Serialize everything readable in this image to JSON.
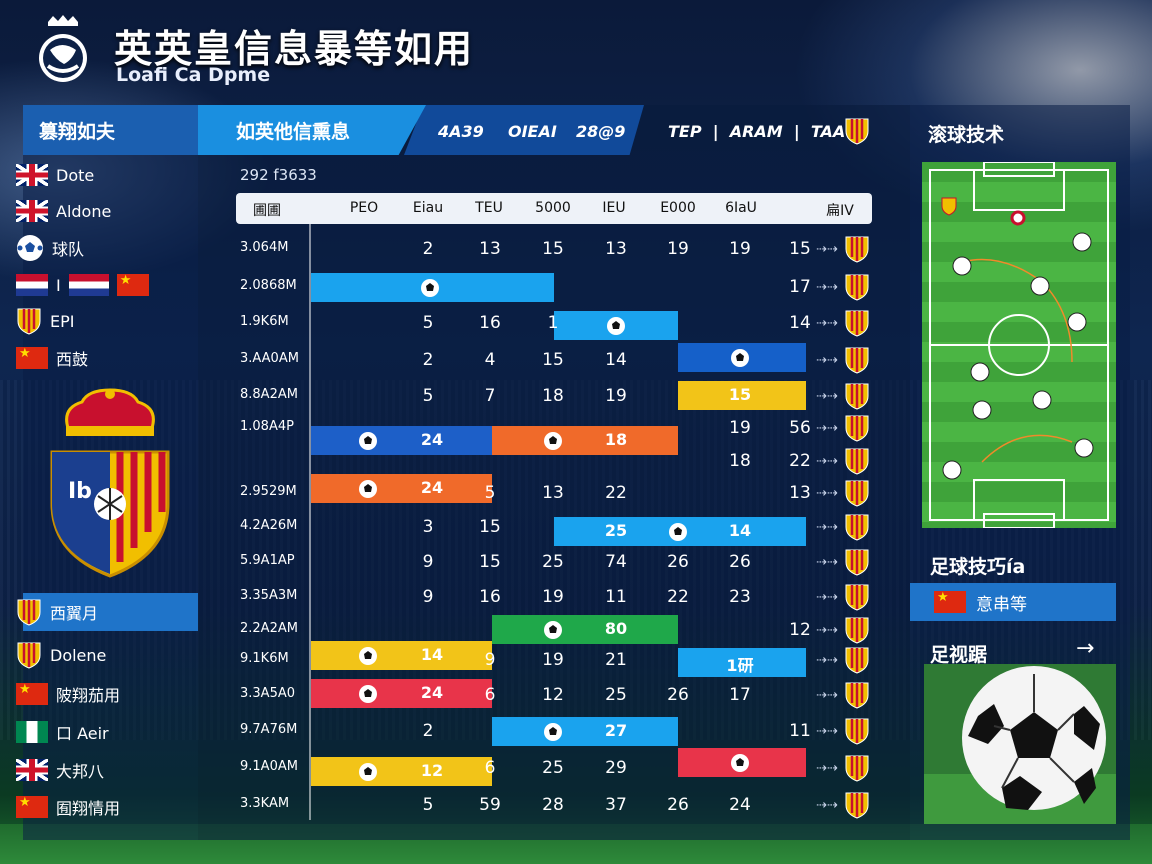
{
  "header": {
    "title": "英英皇信息暴等如用",
    "subtitle": "Loafi Ca Dpme"
  },
  "left_panel": {
    "heading": "篡翔如夫",
    "items": [
      {
        "label": "Dote",
        "icon": "uk-flag-icon"
      },
      {
        "label": "Aldone",
        "icon": "uk-flag-icon"
      },
      {
        "label": "球队",
        "icon": "ball-icon"
      },
      {
        "label": "I",
        "icon": "stripe-flag-icon"
      },
      {
        "label": "EPI",
        "icon": "shield-icon"
      },
      {
        "label": "西鼓",
        "icon": "china-flag-icon"
      }
    ],
    "bottom_items": [
      {
        "label": "西翼月",
        "icon": "shield-icon"
      },
      {
        "label": "Dolene",
        "icon": "shield-icon"
      },
      {
        "label": "陂翔茄用",
        "icon": "china-flag-icon"
      },
      {
        "label": "口 Aeir",
        "icon": "nigeria-flag-icon"
      },
      {
        "label": "大邦八",
        "icon": "uk-flag-icon"
      },
      {
        "label": "囿翔情用",
        "icon": "china-flag-icon"
      }
    ]
  },
  "center_panel": {
    "tab_label": "如英他信熏息",
    "tab_stats": [
      "4A39",
      "OIEAI",
      "28@9"
    ],
    "tab_right": "TEP  |  ARAM  |  TAA",
    "season": "292 f3633",
    "columns": [
      "圃圃",
      "PEO",
      "Eiau",
      "TEU",
      "5000",
      "IEU",
      "E000",
      "6IaU",
      "扁IV"
    ]
  },
  "table": {
    "rows": [
      {
        "date": "3.064M",
        "cells": [
          "2",
          "13",
          "15",
          "13",
          "19",
          "19",
          "15"
        ]
      },
      {
        "date": "2.0868M",
        "cells": [
          "",
          "",
          "",
          "",
          "",
          "",
          "17"
        ]
      },
      {
        "date": "1.9K6M",
        "cells": [
          "5",
          "16",
          "1",
          "",
          "",
          "",
          "14"
        ]
      },
      {
        "date": "3.AA0AM",
        "cells": [
          "2",
          "4",
          "15",
          "14",
          "",
          "",
          ""
        ]
      },
      {
        "date": "8.8A2AM",
        "cells": [
          "5",
          "7",
          "18",
          "19",
          "",
          "",
          ""
        ]
      },
      {
        "date": "1.08A4P",
        "cells": [
          "",
          "",
          "",
          "",
          "",
          "19",
          "56"
        ]
      },
      {
        "date": "",
        "cells": [
          "",
          "",
          "",
          "",
          "",
          "18",
          "22"
        ]
      },
      {
        "date": "2.9529M",
        "cells": [
          "",
          "5",
          "13",
          "22",
          "",
          "",
          "13"
        ]
      },
      {
        "date": "4.2A26M",
        "cells": [
          "3",
          "15",
          "",
          "",
          "",
          "",
          ""
        ]
      },
      {
        "date": "5.9A1AP",
        "cells": [
          "9",
          "15",
          "25",
          "74",
          "26",
          "26",
          ""
        ]
      },
      {
        "date": "3.35A3M",
        "cells": [
          "9",
          "16",
          "19",
          "11",
          "22",
          "23",
          ""
        ]
      },
      {
        "date": "2.2A2AM",
        "cells": [
          "",
          "",
          "",
          "",
          "",
          "",
          "12"
        ]
      },
      {
        "date": "9.1K6M",
        "cells": [
          "",
          "9",
          "19",
          "21",
          "",
          "",
          ""
        ]
      },
      {
        "date": "3.3A5A0",
        "cells": [
          "",
          "6",
          "12",
          "25",
          "26",
          "17",
          ""
        ]
      },
      {
        "date": "9.7A76M",
        "cells": [
          "2",
          "",
          "",
          "",
          "",
          "",
          "11"
        ]
      },
      {
        "date": "9.1A0AM",
        "cells": [
          "",
          "6",
          "25",
          "29",
          "",
          "",
          ""
        ]
      },
      {
        "date": "3.3KAM",
        "cells": [
          "5",
          "59",
          "28",
          "37",
          "26",
          "24",
          ""
        ]
      }
    ],
    "bars": [
      {
        "color": "#1aa3ee",
        "value": ""
      },
      {
        "color": "#1aa3ee",
        "value": ""
      },
      {
        "color": "#1560c9",
        "value": ""
      },
      {
        "color": "#f2c418",
        "value": "15"
      },
      {
        "color": "#1d5fc8",
        "value": "24"
      },
      {
        "color": "#f06a2a",
        "value": "18"
      },
      {
        "color": "#f06a2a",
        "value": "24"
      },
      {
        "color": "#1aa3ee",
        "value": "25"
      },
      {
        "color": "#1aa3ee",
        "value": "14"
      },
      {
        "color": "#1fa84a",
        "value": "80"
      },
      {
        "color": "#f2c418",
        "value": "14"
      },
      {
        "color": "#1aa3ee",
        "value": "1研"
      },
      {
        "color": "#e8344a",
        "value": "24"
      },
      {
        "color": "#1aa3ee",
        "value": "27"
      },
      {
        "color": "#e8344a",
        "value": ""
      },
      {
        "color": "#f2c418",
        "value": "12"
      }
    ],
    "arrow_glyph": "⇢⇢"
  },
  "right_panel": {
    "heading": "滚球技术",
    "tips_title": "足球技巧ía",
    "tips_button": "意串等",
    "tips_sub": "足视踞"
  },
  "colors": {
    "accent": "#1f74c9",
    "tab": "#1a8fe0",
    "spain_red": "#c8102e",
    "spain_yellow": "#f1bf00"
  }
}
